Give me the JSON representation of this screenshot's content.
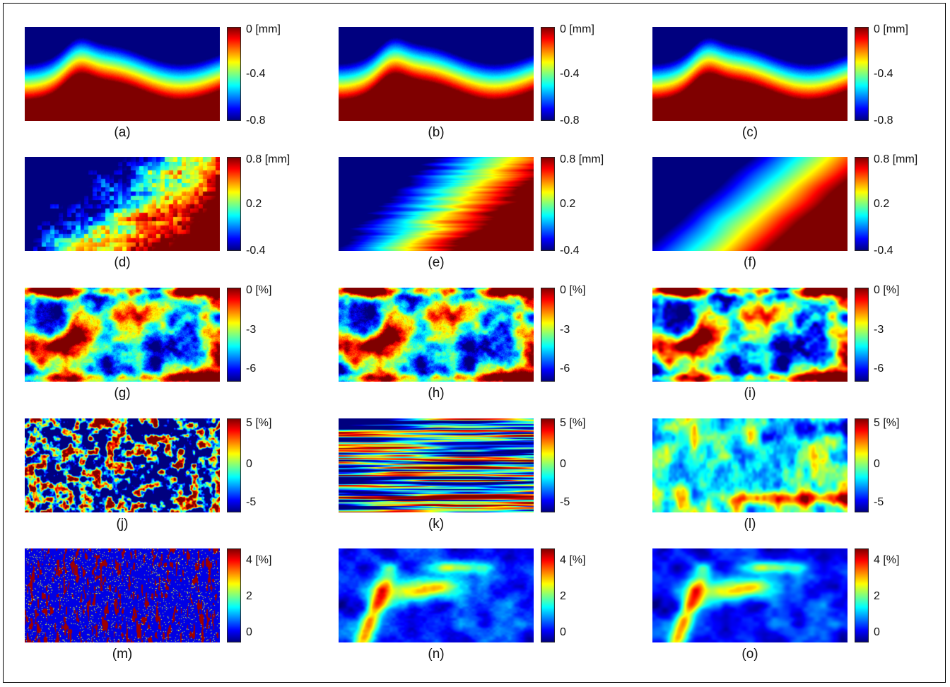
{
  "chart_data": [
    {
      "type": "heatmap",
      "panel": "(a)",
      "colorbar": {
        "ticks": [
          "0 [mm]",
          "-0.4",
          "-0.8"
        ],
        "range": [
          -0.8,
          0.0
        ]
      }
    },
    {
      "type": "heatmap",
      "panel": "(b)",
      "colorbar": {
        "ticks": [
          "0 [mm]",
          "-0.4",
          "-0.8"
        ],
        "range": [
          -0.8,
          0.0
        ]
      }
    },
    {
      "type": "heatmap",
      "panel": "(c)",
      "colorbar": {
        "ticks": [
          "0 [mm]",
          "-0.4",
          "-0.8"
        ],
        "range": [
          -0.8,
          0.0
        ]
      }
    },
    {
      "type": "heatmap",
      "panel": "(d)",
      "colorbar": {
        "ticks": [
          "0.8 [mm]",
          "0.2",
          "-0.4"
        ],
        "range": [
          -0.4,
          0.8
        ]
      }
    },
    {
      "type": "heatmap",
      "panel": "(e)",
      "colorbar": {
        "ticks": [
          "0.8 [mm]",
          "0.2",
          "-0.4"
        ],
        "range": [
          -0.4,
          0.8
        ]
      }
    },
    {
      "type": "heatmap",
      "panel": "(f)",
      "colorbar": {
        "ticks": [
          "0.8 [mm]",
          "0.2",
          "-0.4"
        ],
        "range": [
          -0.4,
          0.8
        ]
      }
    },
    {
      "type": "heatmap",
      "panel": "(g)",
      "colorbar": {
        "ticks": [
          "0 [%]",
          "-3",
          "-6"
        ],
        "range": [
          -7,
          0
        ]
      }
    },
    {
      "type": "heatmap",
      "panel": "(h)",
      "colorbar": {
        "ticks": [
          "0 [%]",
          "-3",
          "-6"
        ],
        "range": [
          -7,
          0
        ]
      }
    },
    {
      "type": "heatmap",
      "panel": "(i)",
      "colorbar": {
        "ticks": [
          "0 [%]",
          "-3",
          "-6"
        ],
        "range": [
          -7,
          0
        ]
      }
    },
    {
      "type": "heatmap",
      "panel": "(j)",
      "colorbar": {
        "ticks": [
          "5 [%]",
          "0",
          "-5"
        ],
        "range": [
          -6,
          6
        ]
      }
    },
    {
      "type": "heatmap",
      "panel": "(k)",
      "colorbar": {
        "ticks": [
          "5 [%]",
          "0",
          "-5"
        ],
        "range": [
          -6,
          6
        ]
      }
    },
    {
      "type": "heatmap",
      "panel": "(l)",
      "colorbar": {
        "ticks": [
          "5 [%]",
          "0",
          "-5"
        ],
        "range": [
          -6,
          6
        ]
      }
    },
    {
      "type": "heatmap",
      "panel": "(m)",
      "colorbar": {
        "ticks": [
          "4 [%]",
          "2",
          "0"
        ],
        "range": [
          -1,
          5
        ]
      }
    },
    {
      "type": "heatmap",
      "panel": "(n)",
      "colorbar": {
        "ticks": [
          "4 [%]",
          "2",
          "0"
        ],
        "range": [
          -1,
          5
        ]
      }
    },
    {
      "type": "heatmap",
      "panel": "(o)",
      "colorbar": {
        "ticks": [
          "4 [%]",
          "2",
          "0"
        ],
        "range": [
          -1,
          5
        ]
      }
    }
  ],
  "colors": {
    "colormap": "jet",
    "frame": "#000000",
    "background": "#ffffff"
  }
}
